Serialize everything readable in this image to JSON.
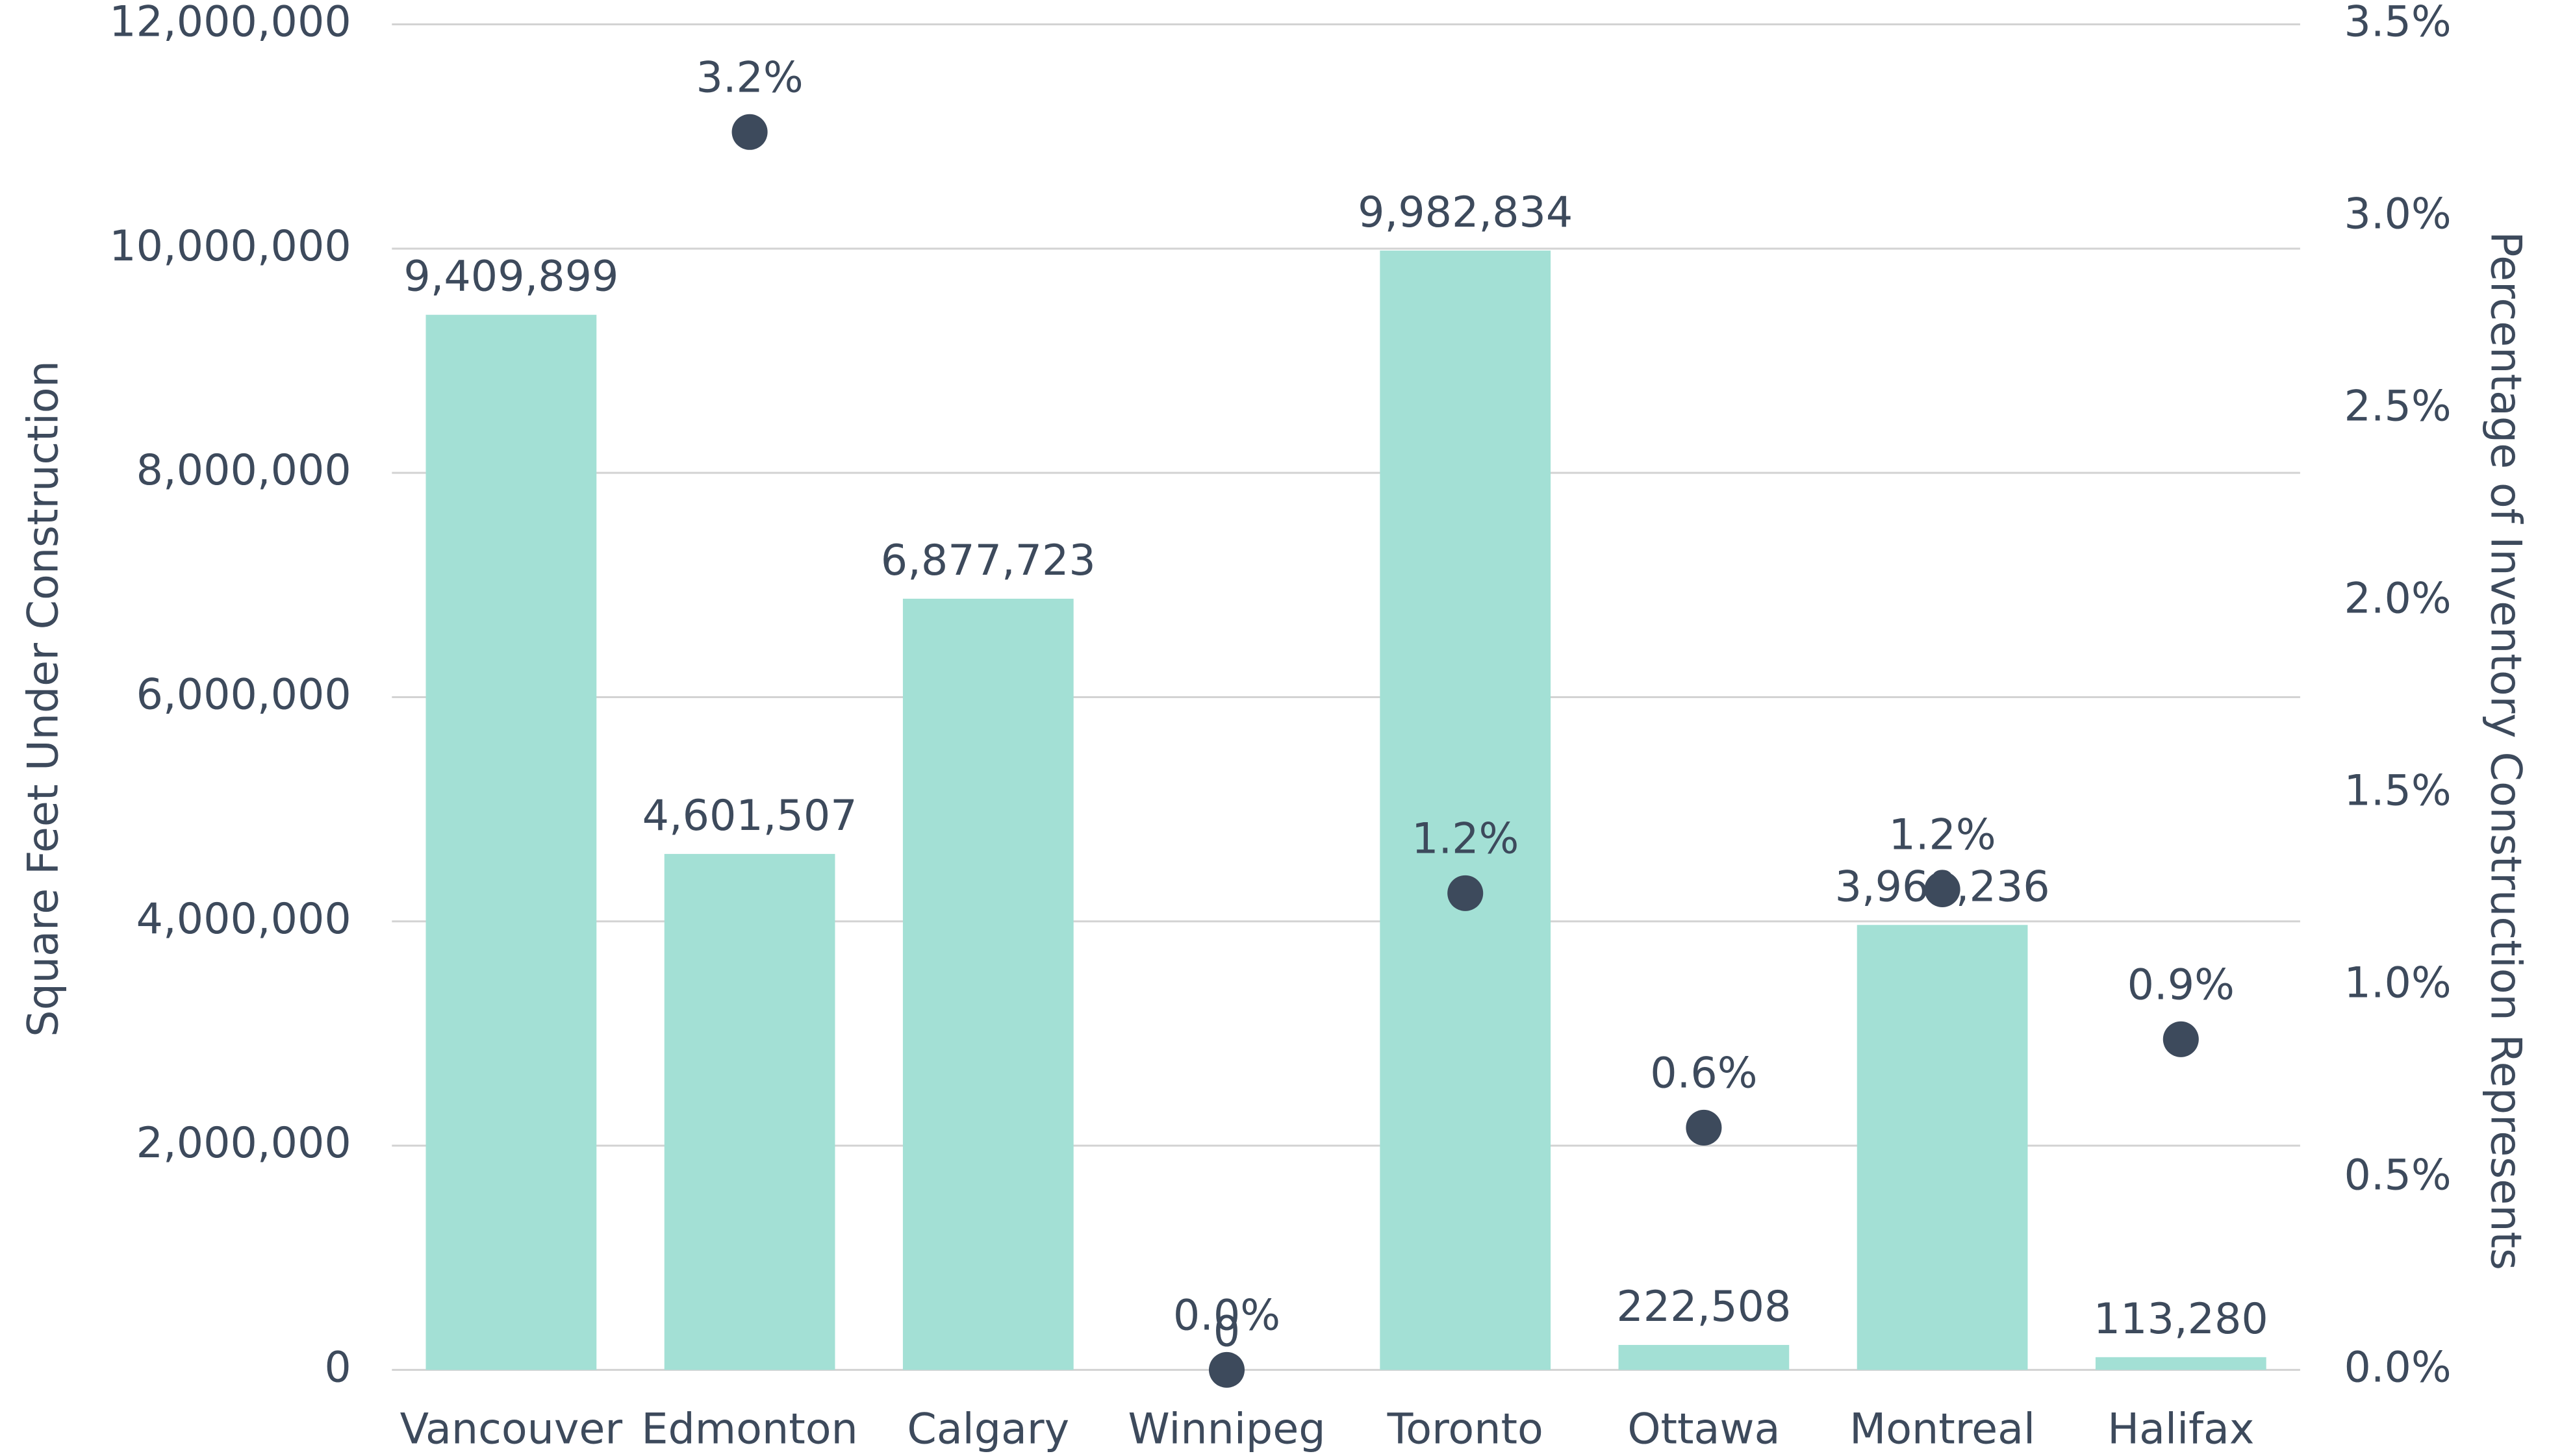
{
  "chart_data": {
    "type": "bar",
    "categories": [
      "Vancouver",
      "Edmonton",
      "Calgary",
      "Winnipeg",
      "Toronto",
      "Ottawa",
      "Montreal",
      "Halifax"
    ],
    "series": [
      {
        "type": "bar",
        "color": "#a3e0d5",
        "values": [
          9409899,
          4601507,
          6877723,
          0,
          9982834,
          222508,
          3968236,
          113280
        ],
        "value_labels": [
          "9,409,899",
          "4,601,507",
          "6,877,723",
          "0",
          "9,982,834",
          "222,508",
          "3,968,236",
          "113,280"
        ]
      },
      {
        "type": "scatter",
        "axis": "y2",
        "color": "#3d4a5c",
        "values": [
          null,
          3.22,
          null,
          0,
          1.24,
          0.63,
          1.25,
          0.86
        ],
        "value_labels": [
          null,
          "3.2%",
          null,
          "0.0%",
          "1.2%",
          "0.6%",
          "1.2%",
          "0.9%"
        ]
      }
    ],
    "y_label": "Square Feet Under Construction",
    "y2_label": "Percentage of Inventory Construction Represents",
    "ylim": [
      0,
      12000000
    ],
    "yticks": [
      0,
      {
        "value": 2000000,
        "label": "2,000,000"
      },
      {
        "value": 4000000,
        "label": "4,000,000"
      },
      {
        "value": 6000000,
        "label": "6,000,000"
      },
      {
        "value": 8000000,
        "label": "8,000,000"
      },
      {
        "value": 10000000,
        "label": "10,000,000"
      },
      {
        "value": 12000000,
        "label": "12,000,000"
      }
    ],
    "y2lim": [
      0,
      3.5
    ],
    "y2ticks": [
      {
        "value": 0,
        "label": "0.0%"
      },
      {
        "value": 0.5,
        "label": "0.5%"
      },
      {
        "value": 1,
        "label": "1.0%"
      },
      {
        "value": 1.5,
        "label": "1.5%"
      },
      {
        "value": 2,
        "label": "2.0%"
      },
      {
        "value": 2.5,
        "label": "2.5%"
      },
      {
        "value": 3,
        "label": "3.0%"
      },
      {
        "value": 3.5,
        "label": "3.5%"
      }
    ],
    "grid": true
  }
}
